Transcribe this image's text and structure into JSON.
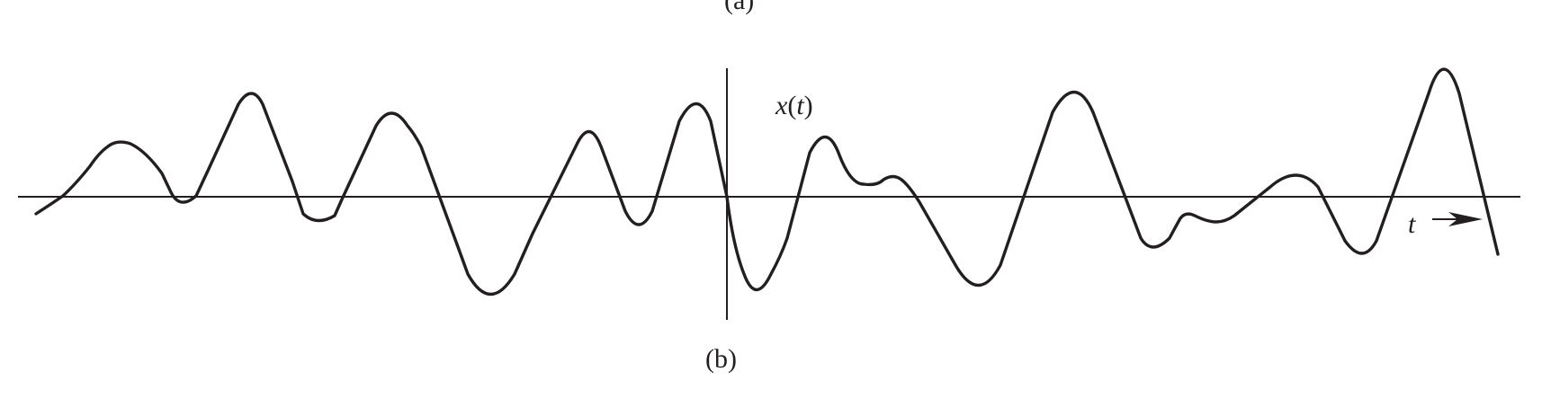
{
  "figure": {
    "top_caption_partial": "(a)",
    "caption": "(b)",
    "signal_label": {
      "func": "x",
      "open": "(",
      "var": "t",
      "close": ")"
    },
    "axis_label": "t",
    "colors": {
      "ink": "#231f20",
      "background": "#ffffff"
    }
  }
}
